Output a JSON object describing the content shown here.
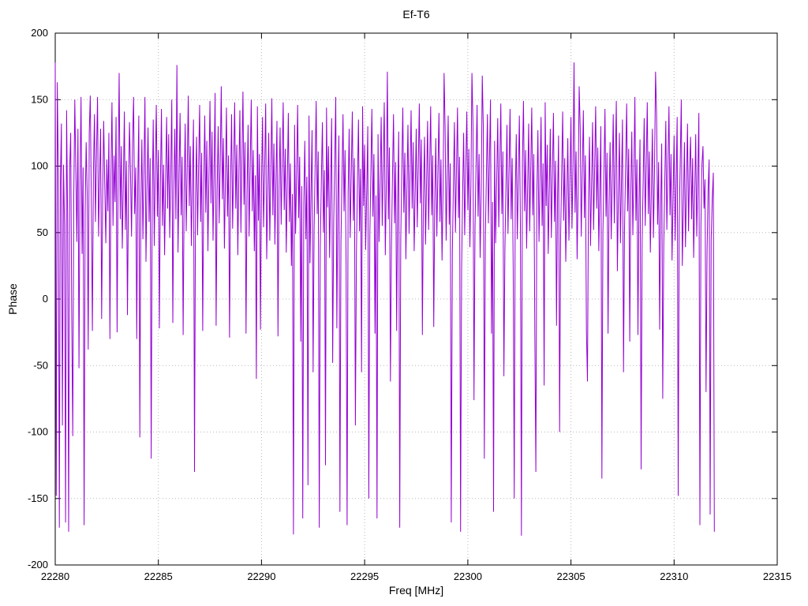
{
  "chart_data": {
    "type": "line",
    "title": "Ef-T6",
    "xlabel": "Freq [MHz]",
    "ylabel": "Phase",
    "xlim": [
      22280,
      22315
    ],
    "ylim": [
      -200,
      200
    ],
    "x_ticks": [
      22280,
      22285,
      22290,
      22295,
      22300,
      22305,
      22310,
      22315
    ],
    "y_ticks": [
      -200,
      -150,
      -100,
      -50,
      0,
      50,
      100,
      150,
      200
    ],
    "grid": "dotted",
    "legend": "none",
    "line_color": "#9400d3",
    "x_start": 22280,
    "x_step": 0.05,
    "values": [
      178,
      -148,
      163,
      95,
      -172,
      88,
      132,
      -95,
      101,
      55,
      -168,
      142,
      60,
      -175,
      98,
      125,
      -12,
      -103,
      77,
      150,
      96,
      43,
      128,
      -52,
      88,
      152,
      34,
      99,
      -170,
      65,
      118,
      80,
      -38,
      125,
      153,
      70,
      -24,
      95,
      139,
      58,
      110,
      152,
      47,
      90,
      128,
      -15,
      76,
      134,
      88,
      42,
      105,
      66,
      125,
      -30,
      92,
      148,
      55,
      108,
      73,
      137,
      -25,
      95,
      170,
      60,
      115,
      38,
      86,
      141,
      52,
      104,
      -12,
      79,
      133,
      95,
      47,
      118,
      152,
      64,
      99,
      -30,
      85,
      138,
      -104,
      70,
      120,
      45,
      96,
      152,
      28,
      83,
      129,
      58,
      106,
      -120,
      74,
      135,
      40,
      98,
      146,
      62,
      112,
      -22,
      87,
      143,
      55,
      101,
      33,
      90,
      137,
      68,
      124,
      46,
      95,
      150,
      -18,
      84,
      128,
      60,
      176,
      35,
      92,
      140,
      63,
      107,
      -27,
      81,
      132,
      51,
      98,
      153,
      70,
      115,
      40,
      89,
      135,
      -130,
      76,
      122,
      48,
      102,
      146,
      58,
      110,
      -24,
      85,
      138,
      65,
      119,
      36,
      94,
      149,
      72,
      126,
      44,
      97,
      155,
      -20,
      82,
      130,
      57,
      103,
      160,
      75,
      121,
      38,
      91,
      144,
      62,
      108,
      -29,
      87,
      139,
      53,
      100,
      148,
      68,
      116,
      33,
      95,
      142,
      50,
      105,
      156,
      71,
      118,
      -26,
      80,
      131,
      47,
      102,
      150,
      66,
      112,
      36,
      93,
      -60,
      145,
      59,
      109,
      -23,
      86,
      137,
      54,
      99,
      147,
      30,
      78,
      125,
      44,
      96,
      151,
      63,
      117,
      41,
      90,
      134,
      -28,
      83,
      129,
      56,
      104,
      148,
      67,
      113,
      35,
      88,
      140,
      58,
      102,
      25,
      79,
      -177,
      131,
      49,
      94,
      146,
      61,
      107,
      -32,
      85,
      -165,
      72,
      119,
      45,
      92,
      -140,
      138,
      27,
      81,
      127,
      -55,
      53,
      100,
      149,
      64,
      111,
      -172,
      39,
      87,
      133,
      50,
      97,
      -125,
      144,
      69,
      115,
      31,
      84,
      136,
      -48,
      57,
      103,
      152,
      -22,
      76,
      123,
      -160,
      42,
      91,
      139,
      66,
      112,
      28,
      -170,
      80,
      128,
      46,
      93,
      141,
      59,
      106,
      -95,
      34,
      89,
      135,
      51,
      98,
      -55,
      145,
      70,
      116,
      37,
      82,
      130,
      -150,
      48,
      95,
      143,
      62,
      109,
      -26,
      78,
      -165,
      124,
      43,
      90,
      137,
      55,
      101,
      148,
      33,
      87,
      171,
      60,
      114,
      -62,
      40,
      92,
      139,
      57,
      103,
      -24,
      77,
      126,
      -172,
      45,
      98,
      144,
      65,
      110,
      30,
      84,
      131,
      49,
      96,
      142,
      68,
      118,
      36,
      81,
      128,
      54,
      100,
      147,
      72,
      120,
      -27,
      75,
      122,
      41,
      88,
      134,
      52,
      99,
      145,
      63,
      108,
      -21,
      74,
      121,
      47,
      93,
      140,
      58,
      105,
      29,
      82,
      170,
      129,
      44,
      91,
      138,
      56,
      102,
      -168,
      35,
      86,
      133,
      50,
      97,
      144,
      61,
      107,
      -175,
      23,
      79,
      125,
      48,
      95,
      141,
      67,
      113,
      39,
      85,
      170,
      132,
      -76,
      53,
      100,
      146,
      62,
      109,
      31,
      83,
      168,
      130,
      -120,
      46,
      92,
      139,
      57,
      104,
      150,
      -26,
      73,
      -160,
      119,
      42,
      89,
      136,
      54,
      101,
      147,
      64,
      111,
      -58,
      37,
      84,
      131,
      49,
      96,
      143,
      60,
      106,
      22,
      -150,
      78,
      124,
      45,
      91,
      138,
      56,
      -178,
      103,
      149,
      66,
      112,
      38,
      85,
      132,
      51,
      98,
      144,
      63,
      109,
      -25,
      -130,
      80,
      127,
      43,
      90,
      137,
      55,
      102,
      -65,
      148,
      70,
      116,
      34,
      81,
      128,
      46,
      93,
      140,
      58,
      104,
      -20,
      77,
      123,
      -100,
      48,
      94,
      141,
      59,
      106,
      28,
      75,
      121,
      44,
      90,
      137,
      53,
      100,
      178,
      65,
      111,
      30,
      82,
      160,
      129,
      47,
      95,
      142,
      61,
      108,
      -24,
      -62,
      76,
      122,
      40,
      87,
      133,
      52,
      99,
      145,
      68,
      114,
      36,
      83,
      130,
      -135,
      50,
      96,
      143,
      62,
      110,
      -26,
      72,
      118,
      45,
      92,
      139,
      57,
      103,
      149,
      21,
      78,
      125,
      42,
      88,
      135,
      -55,
      54,
      101,
      147,
      66,
      113,
      -32,
      79,
      126,
      48,
      94,
      152,
      59,
      105,
      -27,
      74,
      120,
      -128,
      43,
      89,
      136,
      55,
      102,
      148,
      64,
      111,
      35,
      81,
      128,
      46,
      93,
      171,
      139,
      56,
      103,
      -23,
      70,
      117,
      -75,
      41,
      87,
      134,
      52,
      98,
      145,
      63,
      109,
      29,
      76,
      123,
      44,
      90,
      137,
      -148,
      58,
      104,
      150,
      25,
      71,
      118,
      39,
      86,
      132,
      51,
      97,
      122,
      60,
      106,
      31,
      78,
      124,
      47,
      93,
      140,
      -170,
      55,
      101,
      115,
      68,
      90,
      -70,
      36,
      82,
      105,
      -162,
      45,
      75,
      95,
      -175
    ]
  }
}
